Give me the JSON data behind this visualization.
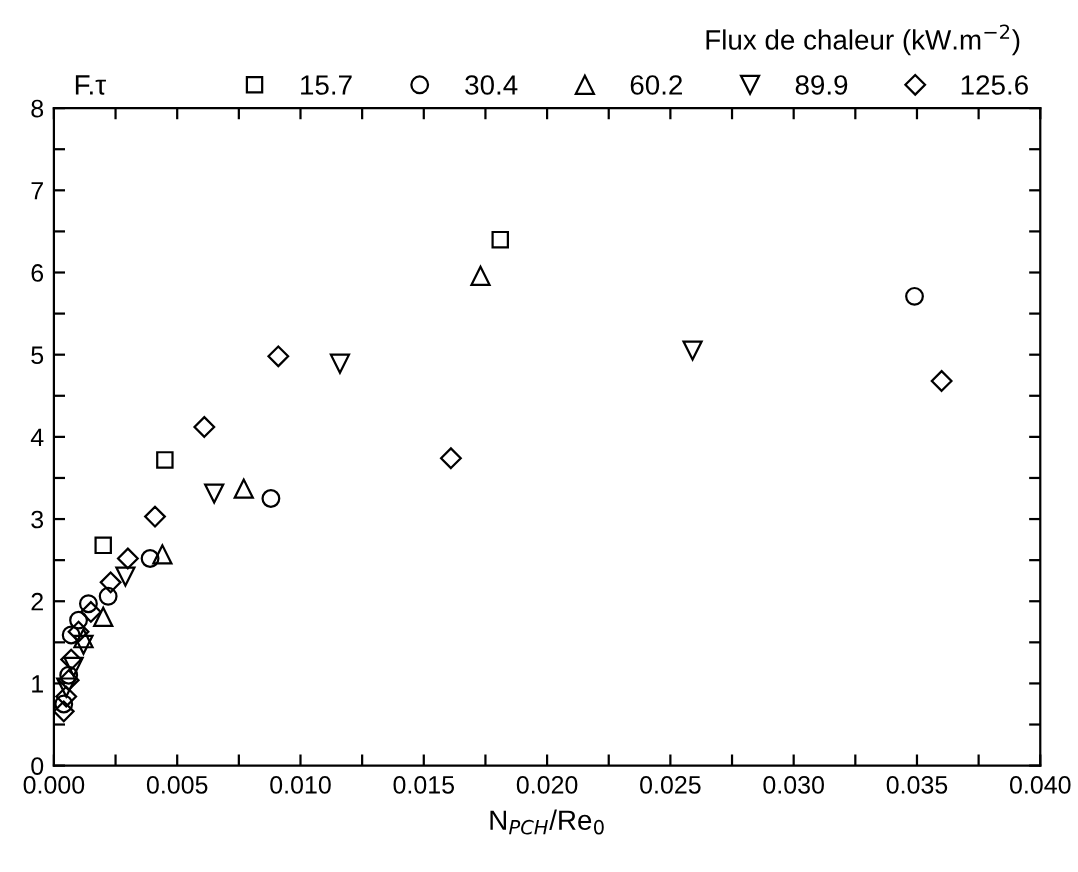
{
  "chart_data": {
    "type": "scatter",
    "xlabel": "N$_{PCH}$/Re$_{0}$",
    "ylabel": "F.τ",
    "legend_title": "Flux de chaleur (kW.m$^{−2}$)",
    "legend": "top right",
    "grid": false,
    "xlim": [
      0,
      0.04
    ],
    "ylim": [
      0,
      8
    ],
    "xticks": [
      {
        "value": 0,
        "label": "0.000"
      },
      {
        "value": 0.0025,
        "label": null
      },
      {
        "value": 0.005,
        "label": "0.005"
      },
      {
        "value": 0.0075,
        "label": null
      },
      {
        "value": 0.01,
        "label": "0.010"
      },
      {
        "value": 0.0125,
        "label": null
      },
      {
        "value": 0.015,
        "label": "0.015"
      },
      {
        "value": 0.0175,
        "label": null
      },
      {
        "value": 0.02,
        "label": "0.020"
      },
      {
        "value": 0.0225,
        "label": null
      },
      {
        "value": 0.025,
        "label": "0.025"
      },
      {
        "value": 0.0275,
        "label": null
      },
      {
        "value": 0.03,
        "label": "0.030"
      },
      {
        "value": 0.0325,
        "label": null
      },
      {
        "value": 0.035,
        "label": "0.035"
      },
      {
        "value": 0.0375,
        "label": null
      },
      {
        "value": 0.04,
        "label": "0.040"
      }
    ],
    "yticks": [
      0,
      {
        "value": 0.5,
        "label": null
      },
      1,
      {
        "value": 1.5,
        "label": null
      },
      2,
      {
        "value": 2.5,
        "label": null
      },
      3,
      {
        "value": 3.5,
        "label": null
      },
      4,
      {
        "value": 4.5,
        "label": null
      },
      5,
      {
        "value": 5.5,
        "label": null
      },
      6,
      {
        "value": 6.5,
        "label": null
      },
      7,
      {
        "value": 7.5,
        "label": null
      },
      8
    ],
    "series": [
      {
        "name": "15.7",
        "color": "#000000",
        "marker": "square",
        "x": [
          0.0181,
          0.0045,
          0.002
        ],
        "values": [
          6.4,
          3.72,
          2.68
        ]
      },
      {
        "name": "30.4",
        "color": "#000000",
        "marker": "circle",
        "x": [
          0.0349,
          0.0088,
          0.0039,
          0.0022,
          0.0014,
          0.001,
          0.0007,
          0.0006,
          0.0004
        ],
        "values": [
          5.71,
          3.25,
          2.52,
          2.06,
          1.97,
          1.77,
          1.59,
          1.1,
          0.75
        ]
      },
      {
        "name": "60.2",
        "color": "#000000",
        "marker": "triangle",
        "x": [
          0.0173,
          0.0077,
          0.0044,
          0.002,
          0.0012
        ],
        "values": [
          5.96,
          3.37,
          2.57,
          1.81,
          1.55
        ]
      },
      {
        "name": "89.9",
        "color": "#000000",
        "marker": "triangle_down",
        "x": [
          0.0259,
          0.0116,
          0.0065,
          0.0029,
          0.0012,
          0.0008,
          0.0005
        ],
        "values": [
          5.05,
          4.89,
          3.31,
          2.3,
          1.47,
          1.2,
          0.95
        ]
      },
      {
        "name": "125.6",
        "color": "#000000",
        "marker": "diamond",
        "x": [
          0.036,
          0.0161,
          0.0091,
          0.0061,
          0.0041,
          0.003,
          0.0023,
          0.0015,
          0.001,
          0.0007,
          0.0006,
          0.0005,
          0.0004
        ],
        "values": [
          4.68,
          3.74,
          4.98,
          4.12,
          3.03,
          2.52,
          2.23,
          1.87,
          1.63,
          1.29,
          1.04,
          0.84,
          0.66
        ]
      }
    ]
  }
}
